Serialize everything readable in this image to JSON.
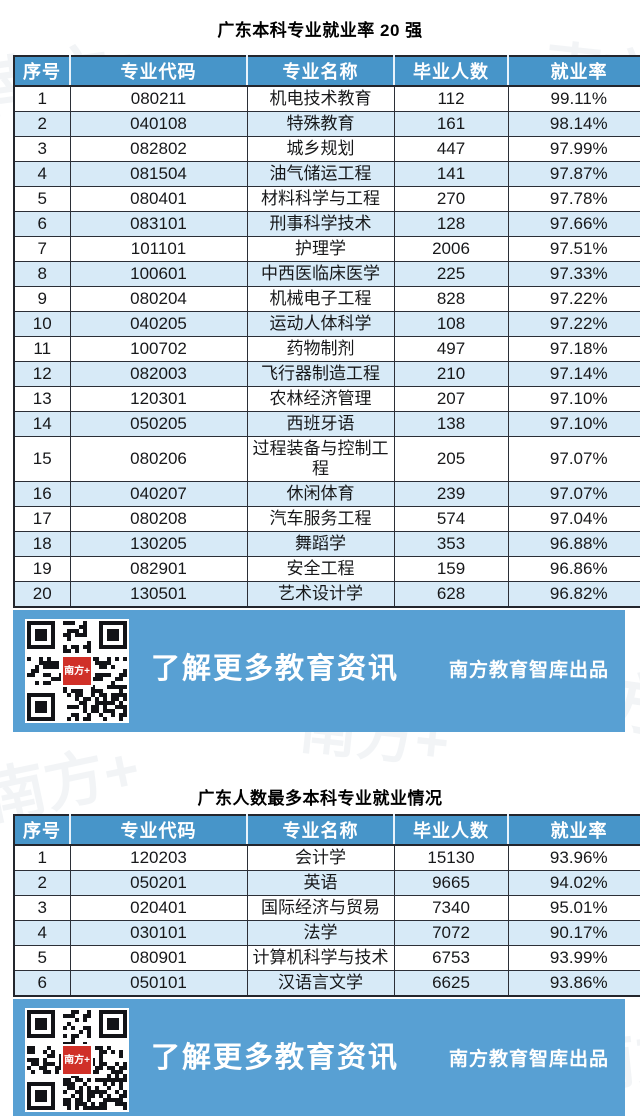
{
  "watermark": {
    "text": "南方+"
  },
  "banner": {
    "cta": "了解更多教育资讯",
    "credit": "南方教育智库出品",
    "qr_label": "南方+"
  },
  "colors": {
    "header_bg": "#4795c9",
    "row_alt_bg": "#d7eaf7",
    "banner_bg": "#58a0d3",
    "border": "#23262d",
    "qr_logo_bg": "#d03028",
    "header_text": "#ffffff"
  },
  "chart_data": [
    {
      "type": "table",
      "title": "广东本科专业就业率 20 强",
      "columns": [
        "序号",
        "专业代码",
        "专业名称",
        "毕业人数",
        "就业率"
      ],
      "rows": [
        [
          "1",
          "080211",
          "机电技术教育",
          "112",
          "99.11%"
        ],
        [
          "2",
          "040108",
          "特殊教育",
          "161",
          "98.14%"
        ],
        [
          "3",
          "082802",
          "城乡规划",
          "447",
          "97.99%"
        ],
        [
          "4",
          "081504",
          "油气储运工程",
          "141",
          "97.87%"
        ],
        [
          "5",
          "080401",
          "材料科学与工程",
          "270",
          "97.78%"
        ],
        [
          "6",
          "083101",
          "刑事科学技术",
          "128",
          "97.66%"
        ],
        [
          "7",
          "101101",
          "护理学",
          "2006",
          "97.51%"
        ],
        [
          "8",
          "100601",
          "中西医临床医学",
          "225",
          "97.33%"
        ],
        [
          "9",
          "080204",
          "机械电子工程",
          "828",
          "97.22%"
        ],
        [
          "10",
          "040205",
          "运动人体科学",
          "108",
          "97.22%"
        ],
        [
          "11",
          "100702",
          "药物制剂",
          "497",
          "97.18%"
        ],
        [
          "12",
          "082003",
          "飞行器制造工程",
          "210",
          "97.14%"
        ],
        [
          "13",
          "120301",
          "农林经济管理",
          "207",
          "97.10%"
        ],
        [
          "14",
          "050205",
          "西班牙语",
          "138",
          "97.10%"
        ],
        [
          "15",
          "080206",
          "过程装备与控制工程",
          "205",
          "97.07%"
        ],
        [
          "16",
          "040207",
          "休闲体育",
          "239",
          "97.07%"
        ],
        [
          "17",
          "080208",
          "汽车服务工程",
          "574",
          "97.04%"
        ],
        [
          "18",
          "130205",
          "舞蹈学",
          "353",
          "96.88%"
        ],
        [
          "19",
          "082901",
          "安全工程",
          "159",
          "96.86%"
        ],
        [
          "20",
          "130501",
          "艺术设计学",
          "628",
          "96.82%"
        ]
      ]
    },
    {
      "type": "table",
      "title": "广东人数最多本科专业就业情况",
      "columns": [
        "序号",
        "专业代码",
        "专业名称",
        "毕业人数",
        "就业率"
      ],
      "rows": [
        [
          "1",
          "120203",
          "会计学",
          "15130",
          "93.96%"
        ],
        [
          "2",
          "050201",
          "英语",
          "9665",
          "94.02%"
        ],
        [
          "3",
          "020401",
          "国际经济与贸易",
          "7340",
          "95.01%"
        ],
        [
          "4",
          "030101",
          "法学",
          "7072",
          "90.17%"
        ],
        [
          "5",
          "080901",
          "计算机科学与技术",
          "6753",
          "93.99%"
        ],
        [
          "6",
          "050101",
          "汉语言文学",
          "6625",
          "93.86%"
        ]
      ]
    }
  ]
}
